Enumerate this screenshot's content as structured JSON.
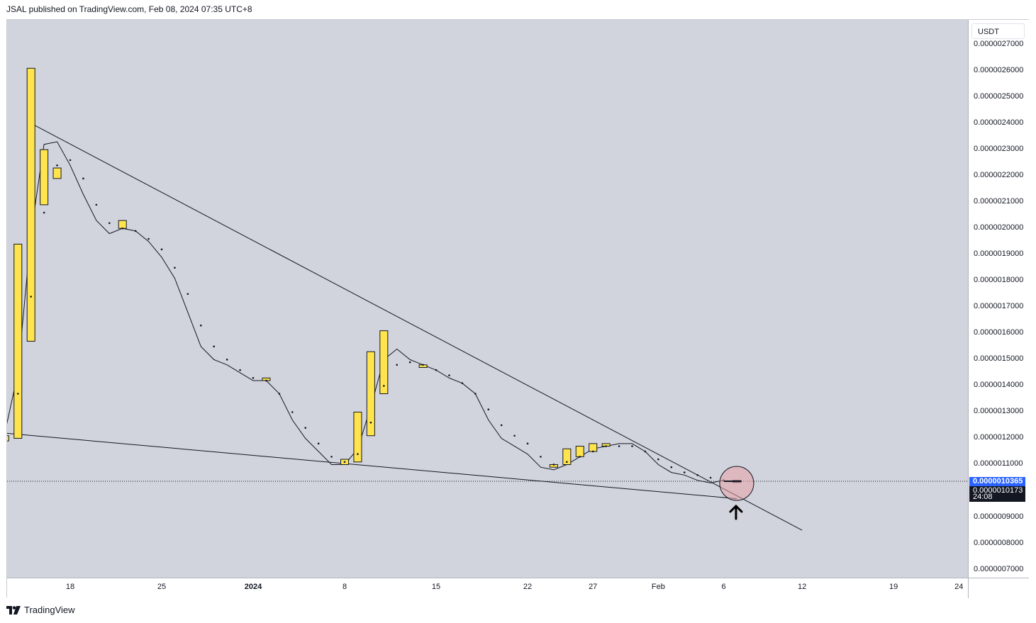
{
  "header": {
    "publisher_line": "JSAL published on TradingView.com, Feb 08, 2024 07:35 UTC+8"
  },
  "toolbar": {
    "currency_label": "USDT"
  },
  "footer": {
    "brand": "TradingView",
    "logo_icon": "tradingview-logo-icon"
  },
  "price_scale": {
    "last_price_label": "0.0000010365",
    "second_label_partial": "0.0000010173",
    "countdown": "24:08"
  },
  "colors": {
    "plot_bg": "#d1d4dc",
    "candle_fill": "#ffe44d",
    "candle_border": "#131722",
    "last_price_bg": "#2962ff",
    "highlight_circle": "#e8a0a8"
  },
  "chart_data": {
    "type": "candlestick",
    "title": "",
    "xlabel": "",
    "ylabel": "",
    "y_unit": "USDT",
    "ylim": [
      7e-07,
      2.7e-06
    ],
    "y_ticks": [
      "0.0000027000",
      "0.0000026000",
      "0.0000025000",
      "0.0000024000",
      "0.0000023000",
      "0.0000022000",
      "0.0000021000",
      "0.0000020000",
      "0.0000019000",
      "0.0000018000",
      "0.0000017000",
      "0.0000016000",
      "0.0000015000",
      "0.0000014000",
      "0.0000013000",
      "0.0000012000",
      "0.0000011000",
      "0.0000009000",
      "0.0000008000",
      "0.0000007000"
    ],
    "x_ticks": [
      {
        "label": "18",
        "day": 18,
        "bold": false
      },
      {
        "label": "25",
        "day": 25,
        "bold": false
      },
      {
        "label": "2024",
        "day": 32,
        "bold": true
      },
      {
        "label": "8",
        "day": 39,
        "bold": false
      },
      {
        "label": "15",
        "day": 46,
        "bold": false
      },
      {
        "label": "22",
        "day": 53,
        "bold": false
      },
      {
        "label": "27",
        "day": 58,
        "bold": false
      },
      {
        "label": "Feb",
        "day": 63,
        "bold": false
      },
      {
        "label": "6",
        "day": 68,
        "bold": false
      },
      {
        "label": "12",
        "day": 74,
        "bold": false
      },
      {
        "label": "19",
        "day": 81,
        "bold": false
      },
      {
        "label": "24",
        "day": 86,
        "bold": false
      }
    ],
    "candles": [
      {
        "day": 13,
        "open": 1.21e-06,
        "close": 1.19e-06
      },
      {
        "day": 14,
        "open": 1.2e-06,
        "close": 1.94e-06
      },
      {
        "day": 15,
        "open": 1.57e-06,
        "close": 2.61e-06
      },
      {
        "day": 16,
        "open": 2.09e-06,
        "close": 2.3e-06
      },
      {
        "day": 17,
        "open": 2.19e-06,
        "close": 2.23e-06
      },
      {
        "day": 22,
        "open": 2e-06,
        "close": 2.03e-06
      },
      {
        "day": 33,
        "open": 1.42e-06,
        "close": 1.43e-06
      },
      {
        "day": 39,
        "open": 1.1e-06,
        "close": 1.12e-06
      },
      {
        "day": 40,
        "open": 1.11e-06,
        "close": 1.3e-06
      },
      {
        "day": 41,
        "open": 1.21e-06,
        "close": 1.53e-06
      },
      {
        "day": 42,
        "open": 1.37e-06,
        "close": 1.61e-06
      },
      {
        "day": 45,
        "open": 1.48e-06,
        "close": 1.47e-06
      },
      {
        "day": 55,
        "open": 1.09e-06,
        "close": 1.1e-06
      },
      {
        "day": 56,
        "open": 1.1e-06,
        "close": 1.16e-06
      },
      {
        "day": 57,
        "open": 1.13e-06,
        "close": 1.17e-06
      },
      {
        "day": 58,
        "open": 1.15e-06,
        "close": 1.18e-06
      },
      {
        "day": 59,
        "open": 1.17e-06,
        "close": 1.18e-06
      },
      {
        "day": 69,
        "open": 1.04e-06,
        "close": 1.04e-06
      }
    ],
    "moving_average": [
      [
        13,
        1.22e-06
      ],
      [
        14,
        1.45e-06
      ],
      [
        15,
        1.98e-06
      ],
      [
        16,
        2.32e-06
      ],
      [
        17,
        2.33e-06
      ],
      [
        18,
        2.24e-06
      ],
      [
        19,
        2.13e-06
      ],
      [
        20,
        2.03e-06
      ],
      [
        21,
        1.98e-06
      ],
      [
        22,
        2e-06
      ],
      [
        23,
        1.99e-06
      ],
      [
        24,
        1.95e-06
      ],
      [
        25,
        1.89e-06
      ],
      [
        26,
        1.81e-06
      ],
      [
        27,
        1.68e-06
      ],
      [
        28,
        1.55e-06
      ],
      [
        29,
        1.5e-06
      ],
      [
        30,
        1.48e-06
      ],
      [
        31,
        1.45e-06
      ],
      [
        32,
        1.42e-06
      ],
      [
        33,
        1.42e-06
      ],
      [
        34,
        1.37e-06
      ],
      [
        35,
        1.27e-06
      ],
      [
        36,
        1.2e-06
      ],
      [
        37,
        1.15e-06
      ],
      [
        38,
        1.1e-06
      ],
      [
        39,
        1.1e-06
      ],
      [
        40,
        1.16e-06
      ],
      [
        41,
        1.32e-06
      ],
      [
        42,
        1.5e-06
      ],
      [
        43,
        1.54e-06
      ],
      [
        44,
        1.5e-06
      ],
      [
        45,
        1.48e-06
      ],
      [
        46,
        1.46e-06
      ],
      [
        47,
        1.43e-06
      ],
      [
        48,
        1.41e-06
      ],
      [
        49,
        1.37e-06
      ],
      [
        50,
        1.27e-06
      ],
      [
        51,
        1.2e-06
      ],
      [
        52,
        1.17e-06
      ],
      [
        53,
        1.14e-06
      ],
      [
        54,
        1.09e-06
      ],
      [
        55,
        1.08e-06
      ],
      [
        56,
        1.1e-06
      ],
      [
        57,
        1.13e-06
      ],
      [
        58,
        1.16e-06
      ],
      [
        59,
        1.17e-06
      ],
      [
        60,
        1.18e-06
      ],
      [
        61,
        1.18e-06
      ],
      [
        62,
        1.15e-06
      ],
      [
        63,
        1.1e-06
      ],
      [
        64,
        1.07e-06
      ],
      [
        65,
        1.06e-06
      ],
      [
        66,
        1.04e-06
      ],
      [
        67,
        1.03e-06
      ],
      [
        68,
        1.04e-06
      ]
    ],
    "dots": [
      [
        14,
        1.37e-06
      ],
      [
        15,
        1.74e-06
      ],
      [
        16,
        2.06e-06
      ],
      [
        17,
        2.24e-06
      ],
      [
        18,
        2.26e-06
      ],
      [
        19,
        2.19e-06
      ],
      [
        20,
        2.09e-06
      ],
      [
        21,
        2.02e-06
      ],
      [
        22,
        2e-06
      ],
      [
        23,
        1.99e-06
      ],
      [
        24,
        1.96e-06
      ],
      [
        25,
        1.92e-06
      ],
      [
        26,
        1.85e-06
      ],
      [
        27,
        1.75e-06
      ],
      [
        28,
        1.63e-06
      ],
      [
        29,
        1.55e-06
      ],
      [
        30,
        1.5e-06
      ],
      [
        31,
        1.46e-06
      ],
      [
        32,
        1.43e-06
      ],
      [
        33,
        1.42e-06
      ],
      [
        34,
        1.37e-06
      ],
      [
        35,
        1.3e-06
      ],
      [
        36,
        1.24e-06
      ],
      [
        37,
        1.18e-06
      ],
      [
        38,
        1.13e-06
      ],
      [
        39,
        1.11e-06
      ],
      [
        40,
        1.14e-06
      ],
      [
        41,
        1.26e-06
      ],
      [
        42,
        1.4e-06
      ],
      [
        43,
        1.48e-06
      ],
      [
        44,
        1.49e-06
      ],
      [
        45,
        1.48e-06
      ],
      [
        46,
        1.46e-06
      ],
      [
        47,
        1.44e-06
      ],
      [
        48,
        1.41e-06
      ],
      [
        49,
        1.37e-06
      ],
      [
        50,
        1.31e-06
      ],
      [
        51,
        1.25e-06
      ],
      [
        52,
        1.21e-06
      ],
      [
        53,
        1.18e-06
      ],
      [
        54,
        1.13e-06
      ],
      [
        55,
        1.1e-06
      ],
      [
        56,
        1.11e-06
      ],
      [
        57,
        1.13e-06
      ],
      [
        58,
        1.15e-06
      ],
      [
        59,
        1.17e-06
      ],
      [
        60,
        1.17e-06
      ],
      [
        61,
        1.17e-06
      ],
      [
        62,
        1.15e-06
      ],
      [
        63,
        1.12e-06
      ],
      [
        64,
        1.09e-06
      ],
      [
        65,
        1.07e-06
      ],
      [
        66,
        1.06e-06
      ],
      [
        67,
        1.05e-06
      ],
      [
        68,
        1.04e-06
      ]
    ],
    "trendlines": [
      {
        "name": "upper",
        "from": [
          15,
          2.4e-06
        ],
        "to": [
          74,
          8.5e-07
        ]
      },
      {
        "name": "lower",
        "from": [
          13,
          1.22e-06
        ],
        "to": [
          69,
          9.7e-07
        ]
      }
    ],
    "last_price": 1.0365e-06,
    "highlight": {
      "day": 69,
      "price": 1.0365e-06
    },
    "arrow": {
      "day": 69,
      "direction": "up"
    }
  }
}
